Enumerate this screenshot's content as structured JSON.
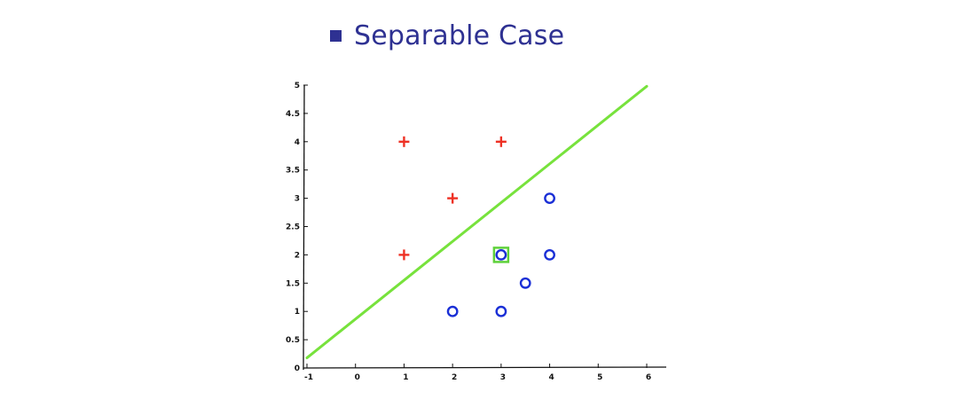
{
  "slide": {
    "title": "Separable Case"
  },
  "chart_data": {
    "type": "scatter",
    "title": "",
    "xlabel": "",
    "ylabel": "",
    "xlim": [
      -1,
      6
    ],
    "ylim": [
      0,
      5
    ],
    "xticks": [
      "-1",
      "0",
      "1",
      "2",
      "3",
      "4",
      "5",
      "6"
    ],
    "yticks": [
      "0",
      "0.5",
      "1",
      "1.5",
      "2",
      "2.5",
      "3",
      "3.5",
      "4",
      "4.5",
      "5"
    ],
    "grid": false,
    "series": [
      {
        "marker": "plus",
        "color": "#ee3124",
        "points": [
          [
            1,
            4
          ],
          [
            3,
            4
          ],
          [
            2,
            3
          ],
          [
            1,
            2
          ]
        ]
      },
      {
        "marker": "circle",
        "color": "#1a2fd6",
        "points": [
          [
            4,
            3
          ],
          [
            3,
            2
          ],
          [
            4,
            2
          ],
          [
            3.5,
            1.5
          ],
          [
            2,
            1
          ],
          [
            3,
            1
          ]
        ]
      }
    ],
    "decision_boundary": {
      "color": "#77e23c",
      "from": [
        -1,
        0.18
      ],
      "to": [
        6,
        4.98
      ]
    },
    "highlighted_points": [
      {
        "point": [
          3,
          2
        ],
        "color": "#5ed13a"
      }
    ]
  }
}
